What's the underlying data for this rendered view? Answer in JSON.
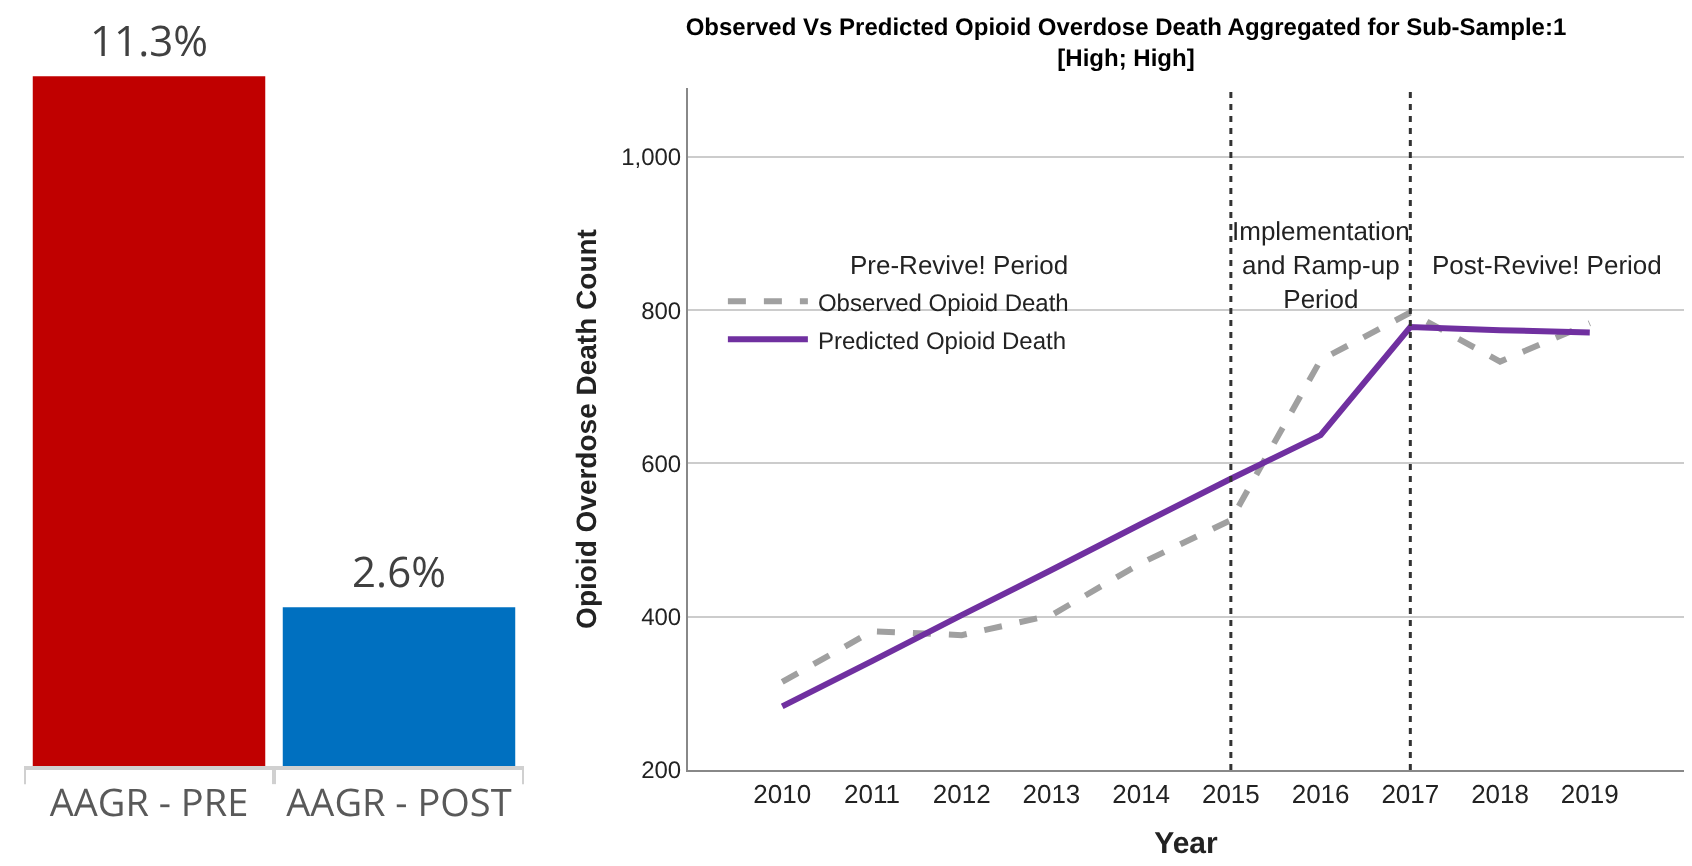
{
  "chart_data": [
    {
      "type": "bar",
      "categories": [
        "AAGR - PRE",
        "AAGR - POST"
      ],
      "values": [
        11.3,
        2.6
      ],
      "colors": [
        "#c00000",
        "#0070c0"
      ],
      "value_labels": [
        "11.3%",
        "2.6%"
      ],
      "grid": false,
      "legend": false,
      "tick_labels": "x"
    },
    {
      "type": "line",
      "title": "Observed Vs Predicted Opioid Overdose Death Aggregated for Sub-Sample:1\n[High; High]",
      "xlabel": "Year",
      "ylabel": "Opioid Overdose Death Count",
      "x": [
        2010,
        2011,
        2012,
        2013,
        2014,
        2015,
        2016,
        2017,
        2018,
        2019
      ],
      "series": [
        {
          "name": "Observed Opioid Death",
          "color": "#a0a0a0",
          "line_style": "dashed",
          "values": [
            315,
            381,
            376,
            402,
            470,
            526,
            735,
            797,
            733,
            783
          ]
        },
        {
          "name": "Predicted Opioid Death",
          "color": "#7030a0",
          "line_style": "solid",
          "values": [
            283,
            342,
            402,
            461,
            521,
            580,
            637,
            778,
            774,
            771
          ]
        }
      ],
      "xlim": [
        2008.95,
        2020.05
      ],
      "xticks": [
        2010,
        2011,
        2012,
        2013,
        2014,
        2015,
        2016,
        2017,
        2018,
        2019
      ],
      "ylim": [
        200,
        1090
      ],
      "yticks": [
        200,
        400,
        600,
        800,
        {
          "value": 1000,
          "label": "1,000"
        }
      ],
      "grid": "y",
      "legend": "top left",
      "marker": "none",
      "ref_lines": [
        {
          "axis": "x",
          "value": 2015,
          "color": "#333333",
          "line_style": "dotted"
        },
        {
          "axis": "x",
          "value": 2017,
          "color": "#333333",
          "line_style": "dotted"
        }
      ],
      "annotations": [
        "Pre-Revive! Period",
        "Implementation\nand Ramp-up\nPeriod",
        "Post-Revive! Period"
      ]
    }
  ]
}
